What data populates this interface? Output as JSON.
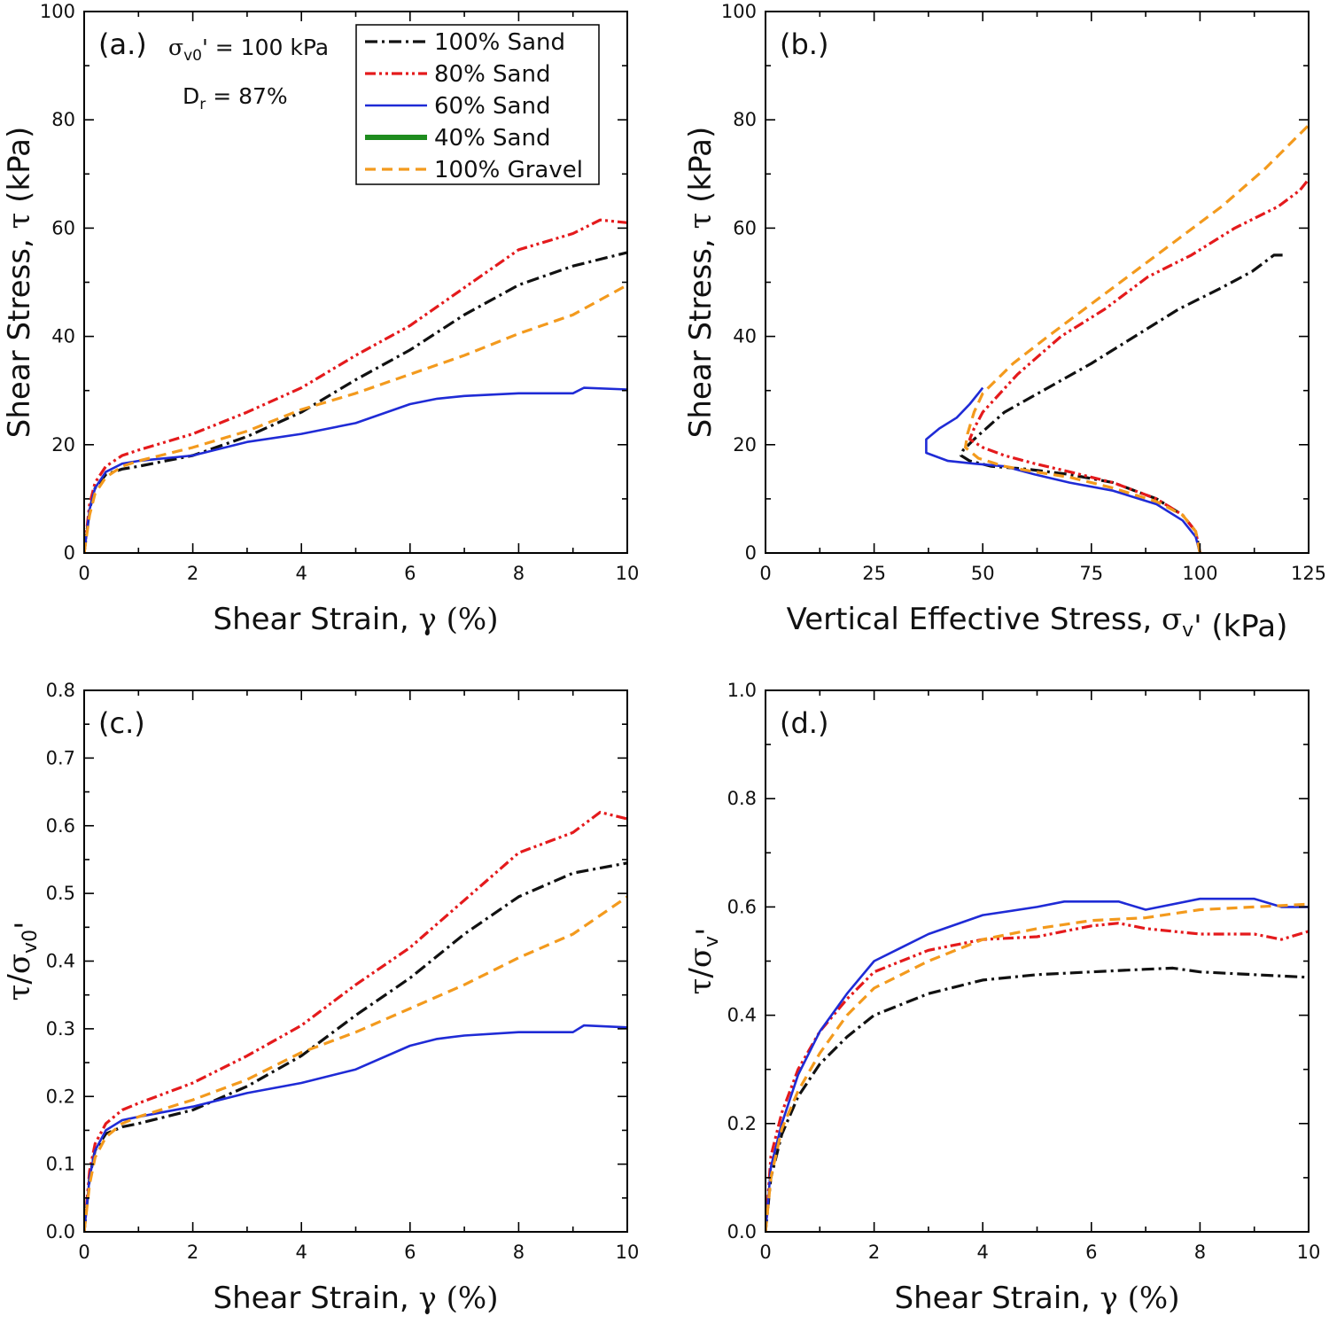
{
  "colors": {
    "100% Sand": "#111111",
    "80% Sand": "#e41a1c",
    "60% Sand": "#1f2bd6",
    "40% Sand": "#1e8c1e",
    "100% Gravel": "#f39a1d"
  },
  "legend": {
    "placement": "top-right of panel (a.)",
    "entries": [
      {
        "label": "100% Sand",
        "style": "dash-dot"
      },
      {
        "label": "80% Sand",
        "style": "dash-dot-dot"
      },
      {
        "label": "60% Sand",
        "style": "solid"
      },
      {
        "label": "40% Sand",
        "style": "solid-thick"
      },
      {
        "label": "100% Gravel",
        "style": "dashed"
      }
    ]
  },
  "panel_a_notes": {
    "stress_sym": "σ",
    "stress_sub": "v0",
    "stress_rest": "' = 100 kPa",
    "dr_sym": "D",
    "dr_sub": "r",
    "dr_rest": " = 87%"
  },
  "chart_data": [
    {
      "panel": "(a.)",
      "type": "line",
      "xlabel": "Shear Strain, γ (%)",
      "ylabel": "Shear Stress, τ (kPa)",
      "xlim": [
        0,
        10
      ],
      "ylim": [
        0,
        100
      ],
      "xticks": [
        0,
        2,
        4,
        6,
        8,
        10
      ],
      "yticks": [
        0,
        20,
        40,
        60,
        80,
        100
      ],
      "grid": false,
      "series": [
        {
          "name": "100% Sand",
          "x": [
            0,
            0.1,
            0.2,
            0.4,
            0.7,
            1,
            2,
            3,
            4,
            5,
            6,
            7,
            8,
            9,
            10
          ],
          "y": [
            0,
            8,
            12,
            14.5,
            15.5,
            16,
            18,
            21.5,
            26,
            32,
            37.5,
            44,
            49.5,
            53,
            55.5
          ]
        },
        {
          "name": "80% Sand",
          "x": [
            0,
            0.1,
            0.2,
            0.4,
            0.7,
            1,
            2,
            3,
            4,
            5,
            6,
            7,
            8,
            9,
            9.5,
            10
          ],
          "y": [
            0,
            9,
            13,
            16,
            18,
            19,
            22,
            26,
            30.5,
            36.5,
            42,
            49,
            56,
            59,
            61.5,
            61
          ]
        },
        {
          "name": "60% Sand",
          "x": [
            0,
            0.1,
            0.2,
            0.4,
            0.7,
            1,
            2,
            3,
            4,
            5,
            6,
            6.5,
            7,
            8,
            9,
            9.2,
            10
          ],
          "y": [
            0,
            8,
            12,
            15,
            16.5,
            17,
            18,
            20.5,
            22,
            24,
            27.5,
            28.5,
            29,
            29.5,
            29.5,
            30.5,
            30.2
          ]
        },
        {
          "name": "100% Gravel",
          "x": [
            0,
            0.1,
            0.2,
            0.4,
            0.7,
            1,
            2,
            3,
            4,
            5,
            6,
            7,
            8,
            9,
            10
          ],
          "y": [
            0,
            7,
            11,
            14,
            16,
            17,
            19.5,
            22.5,
            26.5,
            29.5,
            33,
            36.5,
            40.5,
            44,
            49.5
          ]
        }
      ]
    },
    {
      "panel": "(b.)",
      "type": "line",
      "xlabel": "Vertical Effective Stress, σv' (kPa)",
      "ylabel": "Shear Stress, τ (kPa)",
      "xlim": [
        0,
        125
      ],
      "ylim": [
        0,
        100
      ],
      "xticks": [
        0,
        25,
        50,
        75,
        100,
        125
      ],
      "yticks": [
        0,
        20,
        40,
        60,
        80,
        100
      ],
      "grid": false,
      "series": [
        {
          "name": "100% Sand",
          "x": [
            100,
            99,
            96,
            90,
            80,
            70,
            60,
            52,
            47,
            45,
            45.5,
            48,
            55,
            65,
            75,
            85,
            95,
            105,
            112,
            117,
            119
          ],
          "y": [
            0,
            4,
            7,
            10,
            13,
            14.5,
            15.5,
            16,
            17,
            18,
            19,
            21,
            26,
            30.5,
            35,
            40,
            45,
            49,
            52,
            55,
            55
          ]
        },
        {
          "name": "80% Sand",
          "x": [
            100,
            99,
            96,
            90,
            80,
            70,
            62,
            55,
            50,
            47,
            48,
            50,
            58,
            68,
            78,
            88,
            98,
            108,
            118,
            123,
            125
          ],
          "y": [
            0,
            4,
            7,
            10,
            13,
            15,
            16.5,
            18,
            19.5,
            21,
            23,
            26,
            33,
            40,
            45,
            51,
            55,
            60,
            64,
            67,
            69
          ]
        },
        {
          "name": "60% Sand",
          "x": [
            100,
            99,
            96,
            90,
            80,
            70,
            62,
            55,
            48,
            42,
            37,
            37,
            40,
            44,
            47,
            49,
            50
          ],
          "y": [
            0,
            3,
            6,
            9,
            11.5,
            13,
            14.5,
            16,
            16.5,
            17,
            18.5,
            21,
            23,
            25,
            27.5,
            29.5,
            30.5
          ]
        },
        {
          "name": "100% Gravel",
          "x": [
            100,
            99,
            96,
            90,
            80,
            70,
            62,
            55,
            49,
            46,
            46.5,
            48,
            50,
            57,
            65,
            75,
            85,
            95,
            105,
            115,
            125
          ],
          "y": [
            0,
            4,
            7,
            9.5,
            12,
            14,
            15,
            16,
            17.5,
            19.5,
            22,
            26,
            29.5,
            35,
            40,
            46,
            52,
            58,
            64,
            71,
            79
          ]
        }
      ]
    },
    {
      "panel": "(c.)",
      "type": "line",
      "xlabel": "Shear Strain, γ (%)",
      "ylabel": "τ/σv0'",
      "xlim": [
        0,
        10
      ],
      "ylim": [
        0,
        0.8
      ],
      "xticks": [
        0,
        2,
        4,
        6,
        8,
        10
      ],
      "yticks": [
        0.0,
        0.1,
        0.2,
        0.3,
        0.4,
        0.5,
        0.6,
        0.7,
        0.8
      ],
      "grid": false,
      "series": [
        {
          "name": "100% Sand",
          "x": [
            0,
            0.1,
            0.2,
            0.4,
            0.7,
            1,
            2,
            3,
            4,
            5,
            6,
            7,
            8,
            9,
            10
          ],
          "y": [
            0,
            0.08,
            0.12,
            0.145,
            0.155,
            0.16,
            0.18,
            0.215,
            0.26,
            0.32,
            0.375,
            0.44,
            0.495,
            0.53,
            0.545
          ]
        },
        {
          "name": "80% Sand",
          "x": [
            0,
            0.1,
            0.2,
            0.4,
            0.7,
            1,
            2,
            3,
            4,
            5,
            6,
            7,
            8,
            9,
            9.5,
            10
          ],
          "y": [
            0,
            0.09,
            0.13,
            0.16,
            0.18,
            0.19,
            0.22,
            0.26,
            0.305,
            0.365,
            0.42,
            0.49,
            0.56,
            0.59,
            0.62,
            0.61
          ]
        },
        {
          "name": "60% Sand",
          "x": [
            0,
            0.1,
            0.2,
            0.4,
            0.7,
            1,
            2,
            3,
            4,
            5,
            6,
            6.5,
            7,
            8,
            9,
            9.2,
            10
          ],
          "y": [
            0,
            0.08,
            0.12,
            0.15,
            0.165,
            0.17,
            0.185,
            0.205,
            0.22,
            0.24,
            0.275,
            0.285,
            0.29,
            0.295,
            0.295,
            0.305,
            0.302
          ]
        },
        {
          "name": "100% Gravel",
          "x": [
            0,
            0.1,
            0.2,
            0.4,
            0.7,
            1,
            2,
            3,
            4,
            5,
            6,
            7,
            8,
            9,
            10
          ],
          "y": [
            0,
            0.07,
            0.11,
            0.14,
            0.16,
            0.17,
            0.195,
            0.225,
            0.265,
            0.295,
            0.33,
            0.365,
            0.405,
            0.44,
            0.495
          ]
        }
      ]
    },
    {
      "panel": "(d.)",
      "type": "line",
      "xlabel": "Shear Strain, γ (%)",
      "ylabel": "τ/σv'",
      "xlim": [
        0,
        10
      ],
      "ylim": [
        0,
        1.0
      ],
      "xticks": [
        0,
        2,
        4,
        6,
        8,
        10
      ],
      "yticks": [
        0.0,
        0.2,
        0.4,
        0.6,
        0.8,
        1.0
      ],
      "grid": false,
      "series": [
        {
          "name": "100% Sand",
          "x": [
            0,
            0.1,
            0.3,
            0.6,
            1,
            1.5,
            2,
            3,
            4,
            5,
            6,
            7,
            7.5,
            8,
            9,
            10
          ],
          "y": [
            0,
            0.1,
            0.18,
            0.25,
            0.31,
            0.36,
            0.4,
            0.44,
            0.465,
            0.475,
            0.48,
            0.485,
            0.487,
            0.48,
            0.475,
            0.47
          ]
        },
        {
          "name": "80% Sand",
          "x": [
            0,
            0.1,
            0.3,
            0.6,
            1,
            1.5,
            2,
            3,
            4,
            5,
            6,
            6.5,
            7,
            8,
            9,
            9.5,
            10
          ],
          "y": [
            0,
            0.14,
            0.22,
            0.3,
            0.37,
            0.43,
            0.48,
            0.52,
            0.54,
            0.545,
            0.565,
            0.57,
            0.56,
            0.55,
            0.55,
            0.54,
            0.555
          ]
        },
        {
          "name": "60% Sand",
          "x": [
            0,
            0.1,
            0.3,
            0.6,
            1,
            1.5,
            2,
            3,
            4,
            5,
            5.5,
            6,
            6.5,
            7,
            8,
            9,
            9.5,
            10
          ],
          "y": [
            0,
            0.12,
            0.2,
            0.29,
            0.37,
            0.44,
            0.5,
            0.55,
            0.585,
            0.6,
            0.61,
            0.61,
            0.61,
            0.595,
            0.615,
            0.615,
            0.6,
            0.6
          ]
        },
        {
          "name": "100% Gravel",
          "x": [
            0,
            0.1,
            0.3,
            0.6,
            1,
            1.5,
            2,
            3,
            4,
            5,
            6,
            7,
            8,
            9,
            10
          ],
          "y": [
            0,
            0.1,
            0.19,
            0.26,
            0.33,
            0.4,
            0.45,
            0.5,
            0.54,
            0.56,
            0.575,
            0.58,
            0.595,
            0.6,
            0.605
          ]
        }
      ]
    }
  ]
}
